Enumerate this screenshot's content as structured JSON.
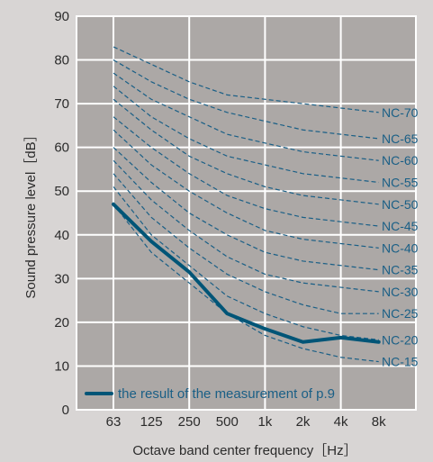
{
  "chart_data": {
    "type": "line",
    "xlabel": "Octave band center frequency［Hz］",
    "ylabel": "Sound pressure level［dB］",
    "ylim": [
      0,
      90
    ],
    "yticks": [
      "0",
      "10",
      "20",
      "30",
      "40",
      "50",
      "60",
      "70",
      "80",
      "90"
    ],
    "categories": [
      "63",
      "125",
      "250",
      "500",
      "1k",
      "2k",
      "4k",
      "8k"
    ],
    "grid": true,
    "legend_position": "bottom-left",
    "colors": {
      "plot_bg": "#aca8a6",
      "frame": "#ffffff",
      "measured": "#005577",
      "nc_curves": "#1a5f86",
      "page_bg": "#d8d5d4"
    },
    "nc_curves": [
      {
        "name": "NC-70",
        "values": [
          83,
          79,
          75,
          72,
          71,
          70,
          69,
          68
        ]
      },
      {
        "name": "NC-65",
        "values": [
          80,
          75,
          71,
          68,
          66,
          64,
          63,
          62
        ]
      },
      {
        "name": "NC-60",
        "values": [
          77,
          71,
          67,
          63,
          61,
          59,
          58,
          57
        ]
      },
      {
        "name": "NC-55",
        "values": [
          74,
          67,
          62,
          58,
          56,
          54,
          53,
          52
        ]
      },
      {
        "name": "NC-50",
        "values": [
          71,
          64,
          58,
          54,
          51,
          49,
          48,
          47
        ]
      },
      {
        "name": "NC-45",
        "values": [
          67,
          60,
          54,
          49,
          46,
          44,
          43,
          42
        ]
      },
      {
        "name": "NC-40",
        "values": [
          64,
          56,
          50,
          45,
          41,
          39,
          38,
          37
        ]
      },
      {
        "name": "NC-35",
        "values": [
          60,
          52,
          45,
          40,
          36,
          34,
          33,
          32
        ]
      },
      {
        "name": "NC-30",
        "values": [
          57,
          48,
          41,
          35,
          31,
          29,
          28,
          27
        ]
      },
      {
        "name": "NC-25",
        "values": [
          54,
          44,
          37,
          31,
          27,
          24,
          22,
          22
        ]
      },
      {
        "name": "NC-20",
        "values": [
          51,
          40,
          33,
          26,
          22,
          19,
          17,
          16
        ]
      },
      {
        "name": "NC-15",
        "values": [
          47,
          36,
          29,
          22,
          17,
          14,
          12,
          11
        ]
      }
    ],
    "series": [
      {
        "name": "the result of the measurement of p.9",
        "values": [
          47,
          38.5,
          31.5,
          22,
          18.5,
          15.5,
          16.5,
          15.5
        ]
      }
    ]
  }
}
